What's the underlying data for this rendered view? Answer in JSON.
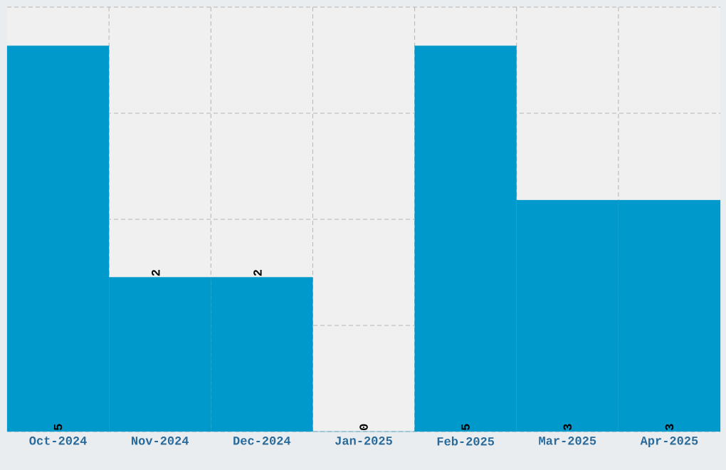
{
  "chart_data": {
    "type": "bar",
    "categories": [
      "Oct-2024",
      "Nov-2024",
      "Dec-2024",
      "Jan-2025",
      "Feb-2025",
      "Mar-2025",
      "Apr-2025"
    ],
    "values": [
      5,
      2,
      2,
      0,
      5,
      3,
      3
    ],
    "color": "#0099cc",
    "ylim": [
      0,
      5.5
    ],
    "yticks": [
      {
        "value": 0,
        "label": null
      },
      {
        "value": 1.375,
        "label": null
      },
      {
        "value": 2.75,
        "label": null
      },
      {
        "value": 4.125,
        "label": null
      },
      {
        "value": 5.5,
        "label": null
      }
    ],
    "tick_labels": "x",
    "grid": true,
    "data_labels": true
  }
}
